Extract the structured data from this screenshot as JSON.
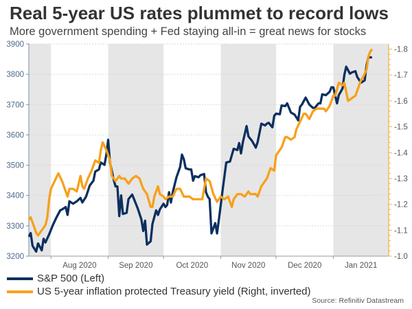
{
  "title": "Real 5-year US rates plummet to record lows",
  "subtitle": "More government spending + Fed staying all-in = great news for stocks",
  "source": "Source: Refinitiv Datastream",
  "chart_data": {
    "type": "line",
    "xlim": [
      "2020-07-20",
      "2021-01-31"
    ],
    "x_tick_labels": [
      {
        "date": "2020-08-01",
        "label": "Aug 2020"
      },
      {
        "date": "2020-09-01",
        "label": "Sep 2020"
      },
      {
        "date": "2020-10-01",
        "label": "Oct 2020"
      },
      {
        "date": "2020-11-01",
        "label": "Nov 2020"
      },
      {
        "date": "2020-12-01",
        "label": "Dec 2020"
      },
      {
        "date": "2021-01-01",
        "label": "Jan 2021"
      }
    ],
    "shaded_months": [
      "2020-07",
      "2020-09",
      "2020-11",
      "2021-01"
    ],
    "left_axis": {
      "ylim": [
        3200,
        3900
      ],
      "ticks": [
        "3200",
        "3300",
        "3400",
        "3500",
        "3600",
        "3700",
        "3800",
        "3900"
      ]
    },
    "right_axis": {
      "ylim": [
        -1.0,
        -1.82
      ],
      "inverted": true,
      "ticks": [
        "-1.0",
        "-1.1",
        "-1.2",
        "-1.3",
        "-1.4",
        "-1.5",
        "-1.6",
        "-1.7",
        "-1.8"
      ]
    },
    "grid": true,
    "legend_placement": "bottom",
    "series": [
      {
        "name": "S&P 500 (Left)",
        "axis": "left",
        "color": "#0b2f5e",
        "points": [
          [
            "2020-07-20",
            3264
          ],
          [
            "2020-07-21",
            3276
          ],
          [
            "2020-07-22",
            3234
          ],
          [
            "2020-07-24",
            3215
          ],
          [
            "2020-07-25",
            3242
          ],
          [
            "2020-07-27",
            3219
          ],
          [
            "2020-07-28",
            3257
          ],
          [
            "2020-07-29",
            3245
          ],
          [
            "2020-07-31",
            3272
          ],
          [
            "2020-08-02",
            3302
          ],
          [
            "2020-08-04",
            3328
          ],
          [
            "2020-08-06",
            3351
          ],
          [
            "2020-08-07",
            3354
          ],
          [
            "2020-08-09",
            3362
          ],
          [
            "2020-08-10",
            3336
          ],
          [
            "2020-08-11",
            3381
          ],
          [
            "2020-08-13",
            3373
          ],
          [
            "2020-08-15",
            3381
          ],
          [
            "2020-08-17",
            3392
          ],
          [
            "2020-08-18",
            3377
          ],
          [
            "2020-08-20",
            3396
          ],
          [
            "2020-08-22",
            3433
          ],
          [
            "2020-08-24",
            3449
          ],
          [
            "2020-08-25",
            3479
          ],
          [
            "2020-08-27",
            3486
          ],
          [
            "2020-08-28",
            3509
          ],
          [
            "2020-08-30",
            3501
          ],
          [
            "2020-08-31",
            3535
          ],
          [
            "2020-09-01",
            3584
          ],
          [
            "2020-09-02",
            3509
          ],
          [
            "2020-09-04",
            3452
          ],
          [
            "2020-09-05",
            3430
          ],
          [
            "2020-09-06",
            3430
          ],
          [
            "2020-09-07",
            3332
          ],
          [
            "2020-09-08",
            3400
          ],
          [
            "2020-09-09",
            3339
          ],
          [
            "2020-09-11",
            3343
          ],
          [
            "2020-09-12",
            3388
          ],
          [
            "2020-09-14",
            3403
          ],
          [
            "2020-09-15",
            3388
          ],
          [
            "2020-09-17",
            3358
          ],
          [
            "2020-09-19",
            3321
          ],
          [
            "2020-09-20",
            3283
          ],
          [
            "2020-09-21",
            3317
          ],
          [
            "2020-09-22",
            3238
          ],
          [
            "2020-09-24",
            3249
          ],
          [
            "2020-09-25",
            3306
          ],
          [
            "2020-09-27",
            3351
          ],
          [
            "2020-09-28",
            3336
          ],
          [
            "2020-09-29",
            3354
          ],
          [
            "2020-10-01",
            3373
          ],
          [
            "2020-10-02",
            3362
          ],
          [
            "2020-10-03",
            3369
          ],
          [
            "2020-10-04",
            3411
          ],
          [
            "2020-10-05",
            3377
          ],
          [
            "2020-10-06",
            3411
          ],
          [
            "2020-10-08",
            3460
          ],
          [
            "2020-10-10",
            3494
          ],
          [
            "2020-10-11",
            3535
          ],
          [
            "2020-10-12",
            3520
          ],
          [
            "2020-10-13",
            3490
          ],
          [
            "2020-10-15",
            3486
          ],
          [
            "2020-10-16",
            3486
          ],
          [
            "2020-10-17",
            3449
          ],
          [
            "2020-10-18",
            3464
          ],
          [
            "2020-10-20",
            3460
          ],
          [
            "2020-10-21",
            3467
          ],
          [
            "2020-10-23",
            3471
          ],
          [
            "2020-10-24",
            3411
          ],
          [
            "2020-10-25",
            3396
          ],
          [
            "2020-10-26",
            3388
          ],
          [
            "2020-10-27",
            3275
          ],
          [
            "2020-10-29",
            3309
          ],
          [
            "2020-10-30",
            3275
          ],
          [
            "2020-10-31",
            3321
          ],
          [
            "2020-11-02",
            3418
          ],
          [
            "2020-11-04",
            3509
          ],
          [
            "2020-11-06",
            3512
          ],
          [
            "2020-11-08",
            3554
          ],
          [
            "2020-11-10",
            3550
          ],
          [
            "2020-11-11",
            3573
          ],
          [
            "2020-11-12",
            3539
          ],
          [
            "2020-11-13",
            3576
          ],
          [
            "2020-11-15",
            3629
          ],
          [
            "2020-11-16",
            3595
          ],
          [
            "2020-11-18",
            3580
          ],
          [
            "2020-11-19",
            3569
          ],
          [
            "2020-11-20",
            3558
          ],
          [
            "2020-11-21",
            3576
          ],
          [
            "2020-11-23",
            3637
          ],
          [
            "2020-11-25",
            3631
          ],
          [
            "2020-11-26",
            3637
          ],
          [
            "2020-11-27",
            3640
          ],
          [
            "2020-11-29",
            3625
          ],
          [
            "2020-11-30",
            3663
          ],
          [
            "2020-12-01",
            3670
          ],
          [
            "2020-12-03",
            3668
          ],
          [
            "2020-12-04",
            3697
          ],
          [
            "2020-12-06",
            3695
          ],
          [
            "2020-12-07",
            3704
          ],
          [
            "2020-12-09",
            3674
          ],
          [
            "2020-12-11",
            3667
          ],
          [
            "2020-12-13",
            3648
          ],
          [
            "2020-12-14",
            3693
          ],
          [
            "2020-12-15",
            3700
          ],
          [
            "2020-12-17",
            3723
          ],
          [
            "2020-12-19",
            3700
          ],
          [
            "2020-12-21",
            3689
          ],
          [
            "2020-12-22",
            3689
          ],
          [
            "2020-12-24",
            3704
          ],
          [
            "2020-12-25",
            3704
          ],
          [
            "2020-12-26",
            3734
          ],
          [
            "2020-12-28",
            3731
          ],
          [
            "2020-12-30",
            3742
          ],
          [
            "2020-12-31",
            3757
          ],
          [
            "2021-01-01",
            3757
          ],
          [
            "2021-01-03",
            3704
          ],
          [
            "2021-01-04",
            3731
          ],
          [
            "2021-01-06",
            3753
          ],
          [
            "2021-01-07",
            3798
          ],
          [
            "2021-01-08",
            3825
          ],
          [
            "2021-01-10",
            3802
          ],
          [
            "2021-01-11",
            3806
          ],
          [
            "2021-01-13",
            3810
          ],
          [
            "2021-01-14",
            3791
          ],
          [
            "2021-01-16",
            3772
          ],
          [
            "2021-01-18",
            3780
          ],
          [
            "2021-01-19",
            3829
          ],
          [
            "2021-01-20",
            3855
          ],
          [
            "2021-01-22",
            3856
          ]
        ]
      },
      {
        "name": "US 5-year inflation protected Treasury yield (Right, inverted)",
        "axis": "right",
        "color": "#f7a01b",
        "points": [
          [
            "2020-07-20",
            -1.14
          ],
          [
            "2020-07-21",
            -1.15
          ],
          [
            "2020-07-23",
            -1.11
          ],
          [
            "2020-07-24",
            -1.09
          ],
          [
            "2020-07-25",
            -1.08
          ],
          [
            "2020-07-27",
            -1.1
          ],
          [
            "2020-07-29",
            -1.12
          ],
          [
            "2020-07-30",
            -1.15
          ],
          [
            "2020-07-31",
            -1.22
          ],
          [
            "2020-08-01",
            -1.26
          ],
          [
            "2020-08-03",
            -1.29
          ],
          [
            "2020-08-05",
            -1.32
          ],
          [
            "2020-08-07",
            -1.29
          ],
          [
            "2020-08-08",
            -1.27
          ],
          [
            "2020-08-10",
            -1.23
          ],
          [
            "2020-08-11",
            -1.26
          ],
          [
            "2020-08-13",
            -1.26
          ],
          [
            "2020-08-15",
            -1.25
          ],
          [
            "2020-08-17",
            -1.31
          ],
          [
            "2020-08-18",
            -1.27
          ],
          [
            "2020-08-19",
            -1.26
          ],
          [
            "2020-08-21",
            -1.3
          ],
          [
            "2020-08-23",
            -1.33
          ],
          [
            "2020-08-25",
            -1.37
          ],
          [
            "2020-08-27",
            -1.36
          ],
          [
            "2020-08-28",
            -1.41
          ],
          [
            "2020-08-29",
            -1.44
          ],
          [
            "2020-08-31",
            -1.41
          ],
          [
            "2020-09-02",
            -1.37
          ],
          [
            "2020-09-03",
            -1.31
          ],
          [
            "2020-09-05",
            -1.29
          ],
          [
            "2020-09-07",
            -1.31
          ],
          [
            "2020-09-08",
            -1.3
          ],
          [
            "2020-09-10",
            -1.3
          ],
          [
            "2020-09-12",
            -1.28
          ],
          [
            "2020-09-14",
            -1.3
          ],
          [
            "2020-09-16",
            -1.31
          ],
          [
            "2020-09-18",
            -1.3
          ],
          [
            "2020-09-20",
            -1.26
          ],
          [
            "2020-09-22",
            -1.24
          ],
          [
            "2020-09-24",
            -1.19
          ],
          [
            "2020-09-25",
            -1.19
          ],
          [
            "2020-09-26",
            -1.23
          ],
          [
            "2020-09-28",
            -1.27
          ],
          [
            "2020-09-29",
            -1.24
          ],
          [
            "2020-10-01",
            -1.23
          ],
          [
            "2020-10-02",
            -1.22
          ],
          [
            "2020-10-04",
            -1.23
          ],
          [
            "2020-10-06",
            -1.23
          ],
          [
            "2020-10-08",
            -1.26
          ],
          [
            "2020-10-10",
            -1.26
          ],
          [
            "2020-10-12",
            -1.23
          ],
          [
            "2020-10-13",
            -1.23
          ],
          [
            "2020-10-15",
            -1.23
          ],
          [
            "2020-10-17",
            -1.22
          ],
          [
            "2020-10-18",
            -1.22
          ],
          [
            "2020-10-20",
            -1.22
          ],
          [
            "2020-10-22",
            -1.22
          ],
          [
            "2020-10-24",
            -1.3
          ],
          [
            "2020-10-26",
            -1.29
          ],
          [
            "2020-10-28",
            -1.24
          ],
          [
            "2020-10-30",
            -1.21
          ],
          [
            "2020-11-01",
            -1.23
          ],
          [
            "2020-11-03",
            -1.22
          ],
          [
            "2020-11-05",
            -1.23
          ],
          [
            "2020-11-07",
            -1.19
          ],
          [
            "2020-11-08",
            -1.22
          ],
          [
            "2020-11-10",
            -1.24
          ],
          [
            "2020-11-12",
            -1.24
          ],
          [
            "2020-11-14",
            -1.23
          ],
          [
            "2020-11-16",
            -1.25
          ],
          [
            "2020-11-17",
            -1.24
          ],
          [
            "2020-11-20",
            -1.24
          ],
          [
            "2020-11-21",
            -1.23
          ],
          [
            "2020-11-23",
            -1.27
          ],
          [
            "2020-11-25",
            -1.29
          ],
          [
            "2020-11-26",
            -1.3
          ],
          [
            "2020-11-28",
            -1.34
          ],
          [
            "2020-11-30",
            -1.33
          ],
          [
            "2020-12-01",
            -1.39
          ],
          [
            "2020-12-03",
            -1.41
          ],
          [
            "2020-12-04",
            -1.42
          ],
          [
            "2020-12-06",
            -1.46
          ],
          [
            "2020-12-07",
            -1.46
          ],
          [
            "2020-12-09",
            -1.45
          ],
          [
            "2020-12-11",
            -1.46
          ],
          [
            "2020-12-12",
            -1.49
          ],
          [
            "2020-12-14",
            -1.52
          ],
          [
            "2020-12-16",
            -1.55
          ],
          [
            "2020-12-17",
            -1.55
          ],
          [
            "2020-12-19",
            -1.53
          ],
          [
            "2020-12-21",
            -1.56
          ],
          [
            "2020-12-23",
            -1.57
          ],
          [
            "2020-12-25",
            -1.57
          ],
          [
            "2020-12-27",
            -1.57
          ],
          [
            "2020-12-28",
            -1.56
          ],
          [
            "2020-12-30",
            -1.58
          ],
          [
            "2021-01-01",
            -1.62
          ],
          [
            "2021-01-02",
            -1.62
          ],
          [
            "2021-01-04",
            -1.67
          ],
          [
            "2021-01-06",
            -1.66
          ],
          [
            "2021-01-07",
            -1.67
          ],
          [
            "2021-01-09",
            -1.6
          ],
          [
            "2021-01-11",
            -1.61
          ],
          [
            "2021-01-13",
            -1.62
          ],
          [
            "2021-01-16",
            -1.68
          ],
          [
            "2021-01-17",
            -1.69
          ],
          [
            "2021-01-19",
            -1.72
          ],
          [
            "2021-01-20",
            -1.77
          ],
          [
            "2021-01-21",
            -1.79
          ],
          [
            "2021-01-22",
            -1.8
          ]
        ]
      }
    ]
  }
}
